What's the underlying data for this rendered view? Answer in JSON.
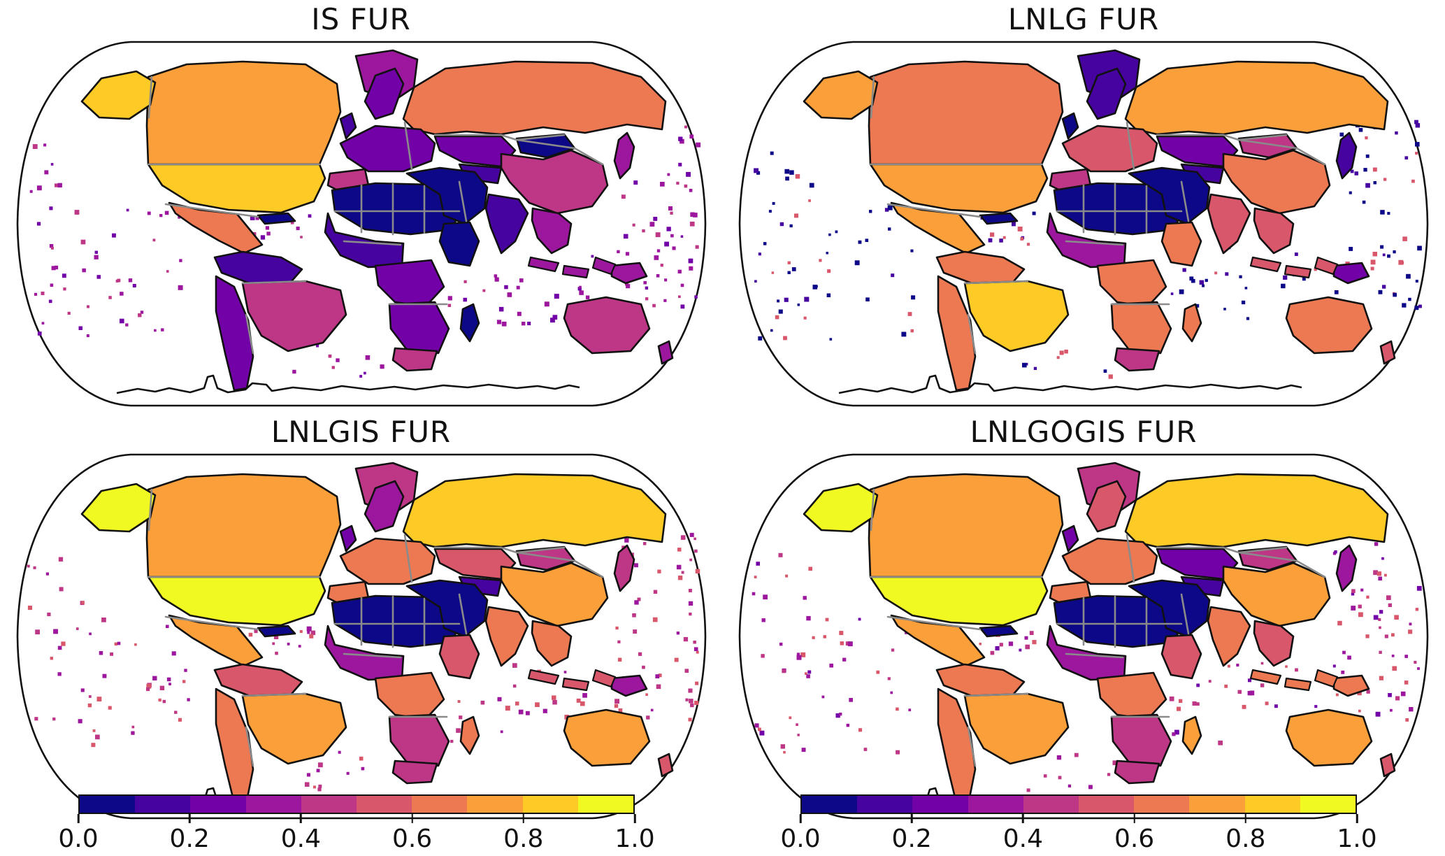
{
  "chart_data": {
    "type": "heatmap",
    "subtype": "choropleth-world-maps",
    "projection": "robinson",
    "colormap": "plasma",
    "n_levels": 10,
    "value_range": [
      0.0,
      1.0
    ],
    "palette": [
      "#0d0887",
      "#46039f",
      "#7201a8",
      "#9c179e",
      "#bd3786",
      "#d8576b",
      "#ed7953",
      "#fb9f3a",
      "#fdca26",
      "#f0f921"
    ],
    "colorbar": {
      "ticks": [
        "0.0",
        "0.2",
        "0.4",
        "0.6",
        "0.8",
        "1.0"
      ]
    },
    "panels": [
      {
        "title": "IS FUR",
        "ocean_color_bins": [
          2,
          3,
          4,
          3
        ],
        "values": {
          "alaska": 0.85,
          "canada": 0.75,
          "usa": 0.85,
          "mexico": 0.65,
          "caribbean": 0.05,
          "greenland": 0.35,
          "northern_south_america": 0.15,
          "andes_argentina": 0.25,
          "brazil": 0.45,
          "uk": 0.15,
          "scandinavia": 0.25,
          "western_europe": 0.25,
          "iberia": 0.45,
          "russia": 0.65,
          "kazakhstan": 0.25,
          "central_asia": 0.15,
          "mongolia": 0.05,
          "china": 0.45,
          "japan": 0.35,
          "middle_east": 0.05,
          "india": 0.15,
          "southeast_asia": 0.35,
          "indonesia": 0.35,
          "new_guinea": 0.35,
          "sahara": 0.05,
          "sahel_west_africa": 0.15,
          "central_africa": 0.25,
          "east_africa": 0.05,
          "southern_africa": 0.25,
          "south_africa": 0.45,
          "madagascar": 0.05,
          "australia": 0.45,
          "new_zealand": 0.35
        }
      },
      {
        "title": "LNLG FUR",
        "ocean_color_bins": [
          0,
          1,
          0,
          5
        ],
        "values": {
          "alaska": 0.75,
          "canada": 0.65,
          "usa": 0.75,
          "mexico": 0.75,
          "caribbean": 0.05,
          "greenland": 0.15,
          "northern_south_america": 0.65,
          "andes_argentina": 0.65,
          "brazil": 0.85,
          "uk": 0.05,
          "scandinavia": 0.15,
          "western_europe": 0.55,
          "iberia": 0.45,
          "russia": 0.75,
          "kazakhstan": 0.25,
          "central_asia": 0.15,
          "mongolia": 0.45,
          "china": 0.65,
          "japan": 0.15,
          "middle_east": 0.05,
          "india": 0.55,
          "southeast_asia": 0.55,
          "indonesia": 0.55,
          "new_guinea": 0.25,
          "sahara": 0.05,
          "sahel_west_africa": 0.35,
          "central_africa": 0.65,
          "east_africa": 0.65,
          "southern_africa": 0.65,
          "south_africa": 0.45,
          "madagascar": 0.65,
          "australia": 0.65,
          "new_zealand": 0.55
        }
      },
      {
        "title": "LNLGIS FUR",
        "ocean_color_bins": [
          3,
          4,
          5,
          4
        ],
        "values": {
          "alaska": 0.95,
          "canada": 0.75,
          "usa": 0.95,
          "mexico": 0.75,
          "caribbean": 0.05,
          "greenland": 0.45,
          "northern_south_america": 0.55,
          "andes_argentina": 0.65,
          "brazil": 0.75,
          "uk": 0.25,
          "scandinavia": 0.35,
          "western_europe": 0.65,
          "iberia": 0.65,
          "russia": 0.85,
          "kazakhstan": 0.55,
          "central_asia": 0.15,
          "mongolia": 0.45,
          "china": 0.75,
          "japan": 0.45,
          "middle_east": 0.05,
          "india": 0.65,
          "southeast_asia": 0.65,
          "indonesia": 0.55,
          "new_guinea": 0.35,
          "sahara": 0.05,
          "sahel_west_africa": 0.35,
          "central_africa": 0.65,
          "east_africa": 0.55,
          "southern_africa": 0.45,
          "south_africa": 0.45,
          "madagascar": 0.65,
          "australia": 0.75,
          "new_zealand": 0.55
        }
      },
      {
        "title": "LNLGOGIS FUR",
        "ocean_color_bins": [
          3,
          4,
          5,
          2
        ],
        "values": {
          "alaska": 0.95,
          "canada": 0.75,
          "usa": 0.95,
          "mexico": 0.75,
          "caribbean": 0.05,
          "greenland": 0.45,
          "northern_south_america": 0.65,
          "andes_argentina": 0.65,
          "brazil": 0.75,
          "uk": 0.25,
          "scandinavia": 0.55,
          "western_europe": 0.65,
          "iberia": 0.65,
          "russia": 0.85,
          "kazakhstan": 0.25,
          "central_asia": 0.15,
          "mongolia": 0.45,
          "china": 0.75,
          "japan": 0.35,
          "middle_east": 0.05,
          "india": 0.65,
          "southeast_asia": 0.55,
          "indonesia": 0.65,
          "new_guinea": 0.65,
          "sahara": 0.05,
          "sahel_west_africa": 0.35,
          "central_africa": 0.65,
          "east_africa": 0.55,
          "southern_africa": 0.45,
          "south_africa": 0.45,
          "madagascar": 0.75,
          "australia": 0.75,
          "new_zealand": 0.55
        }
      }
    ]
  }
}
